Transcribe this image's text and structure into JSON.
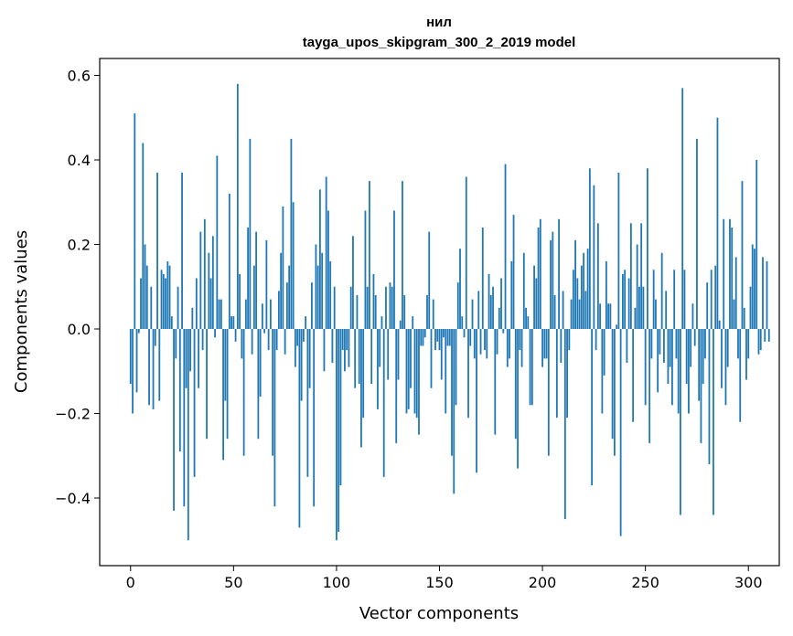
{
  "chart_data": {
    "type": "bar",
    "title": "нил",
    "subtitle": "tayga_upos_skipgram_300_2_2019 model",
    "xlabel": "Vector components",
    "ylabel": "Components values",
    "xlim": [
      -15,
      315
    ],
    "ylim": [
      -0.56,
      0.64
    ],
    "x_ticks": [
      0,
      50,
      100,
      150,
      200,
      250,
      300
    ],
    "y_ticks": [
      -0.4,
      -0.2,
      0.0,
      0.2,
      0.4,
      0.6
    ],
    "y_tick_labels": [
      "−0.4",
      "−0.2",
      "0.0",
      "0.2",
      "0.4",
      "0.6"
    ],
    "grid": false,
    "bar_color": "#1f77b4",
    "values": [
      -0.13,
      -0.2,
      0.51,
      -0.15,
      -0.01,
      0.12,
      0.44,
      0.2,
      0.15,
      -0.18,
      0.1,
      -0.19,
      -0.04,
      0.37,
      -0.17,
      0.14,
      0.13,
      0.12,
      0.16,
      0.15,
      0.03,
      -0.43,
      -0.07,
      0.1,
      -0.29,
      0.37,
      -0.42,
      -0.14,
      -0.5,
      -0.1,
      0.05,
      -0.35,
      0.12,
      -0.14,
      0.23,
      -0.05,
      0.26,
      -0.26,
      0.18,
      0.12,
      0.22,
      -0.02,
      0.41,
      0.07,
      0.07,
      -0.31,
      -0.17,
      -0.26,
      0.32,
      0.03,
      0.03,
      -0.03,
      0.58,
      0.13,
      -0.07,
      -0.3,
      0.07,
      0.24,
      0.45,
      -0.06,
      0.15,
      0.23,
      -0.26,
      -0.16,
      0.06,
      -0.01,
      0.21,
      -0.05,
      0.07,
      -0.3,
      -0.42,
      -0.05,
      0.09,
      0.18,
      0.29,
      -0.06,
      0.11,
      0.15,
      0.45,
      0.3,
      -0.09,
      -0.04,
      -0.47,
      -0.17,
      -0.03,
      0.03,
      -0.35,
      -0.14,
      0.11,
      -0.42,
      0.2,
      0.15,
      0.33,
      0.18,
      -0.1,
      0.36,
      0.28,
      0.16,
      -0.08,
      0.1,
      -0.5,
      -0.48,
      -0.37,
      -0.05,
      -0.1,
      -0.05,
      -0.09,
      0.1,
      0.22,
      -0.14,
      0.08,
      -0.13,
      -0.28,
      -0.21,
      0.28,
      0.1,
      0.35,
      -0.13,
      0.13,
      0.08,
      -0.19,
      -0.09,
      0.03,
      -0.35,
      0.1,
      -0.12,
      0.11,
      0.1,
      0.28,
      -0.27,
      -0.12,
      0.02,
      0.35,
      0.08,
      -0.2,
      -0.19,
      -0.14,
      0.03,
      -0.2,
      -0.21,
      -0.25,
      -0.04,
      -0.04,
      -0.02,
      0.08,
      0.23,
      -0.14,
      0.07,
      -0.05,
      -0.03,
      -0.05,
      -0.12,
      -0.02,
      -0.2,
      -0.04,
      -0.04,
      -0.3,
      -0.39,
      -0.18,
      0.11,
      0.19,
      0.03,
      -0.02,
      0.36,
      -0.21,
      -0.04,
      0.07,
      -0.07,
      -0.34,
      0.09,
      -0.06,
      0.24,
      -0.05,
      -0.07,
      0.13,
      0.08,
      0.1,
      -0.25,
      -0.06,
      0.05,
      0.12,
      -0.01,
      0.39,
      -0.09,
      -0.07,
      0.16,
      0.27,
      -0.26,
      -0.33,
      -0.05,
      -0.09,
      0.18,
      0.05,
      0.03,
      -0.18,
      -0.18,
      0.15,
      0.12,
      0.24,
      0.26,
      -0.09,
      -0.07,
      -0.07,
      -0.3,
      0.21,
      0.23,
      0.08,
      -0.21,
      0.26,
      -0.08,
      0.09,
      -0.45,
      -0.21,
      -0.05,
      0.07,
      0.14,
      0.21,
      0.12,
      0.07,
      0.15,
      0.18,
      0.09,
      0.19,
      0.38,
      -0.37,
      0.34,
      -0.05,
      0.25,
      0.06,
      -0.2,
      -0.11,
      0.16,
      0.06,
      0.06,
      -0.26,
      -0.3,
      0.01,
      0.37,
      -0.49,
      0.13,
      0.14,
      -0.08,
      0.12,
      0.25,
      -0.22,
      0.05,
      0.2,
      0.1,
      0.25,
      0.1,
      -0.18,
      0.38,
      -0.27,
      -0.07,
      0.14,
      0.07,
      -0.15,
      -0.06,
      0.18,
      -0.08,
      0.09,
      -0.13,
      -0.09,
      -0.18,
      0.14,
      -0.07,
      -0.2,
      -0.44,
      0.57,
      0.14,
      -0.13,
      -0.2,
      -0.09,
      0.06,
      -0.04,
      0.45,
      -0.17,
      -0.27,
      -0.13,
      -0.07,
      0.11,
      -0.32,
      0.14,
      -0.44,
      0.15,
      0.5,
      0.02,
      -0.14,
      0.26,
      -0.18,
      -0.09,
      0.26,
      0.24,
      0.07,
      0.17,
      -0.07,
      -0.22,
      0.35,
      0.05,
      -0.12,
      -0.07,
      0.1,
      0.2,
      0.19,
      0.4,
      -0.06,
      -0.05,
      0.17,
      -0.03,
      0.16,
      -0.03
    ]
  }
}
